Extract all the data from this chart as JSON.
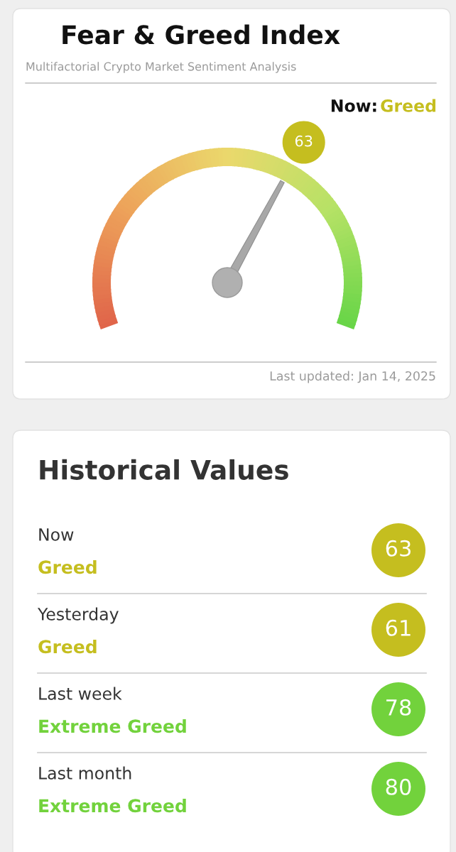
{
  "chart_data": [
    {
      "type": "other",
      "title": "Fear & Greed Index",
      "subtitle": "Multifactorial Crypto Market Sentiment Analysis",
      "annotations": [
        "Now:",
        "Greed",
        "Last updated: Jan 14, 2025"
      ],
      "values": [
        63
      ],
      "colors": [
        "#c5be1f"
      ],
      "data_labels": true
    },
    {
      "type": "other",
      "title": "Historical Values",
      "categories": [
        "Now",
        "Yesterday",
        "Last week",
        "Last month"
      ],
      "values": [
        63,
        61,
        78,
        80
      ],
      "colors": [
        "#c5be1f",
        "#c5be1f",
        "#72d23c",
        "#72d23c"
      ],
      "annotations": [
        "Greed",
        "Greed",
        "Extreme Greed",
        "Extreme Greed"
      ],
      "data_labels": true
    }
  ]
}
